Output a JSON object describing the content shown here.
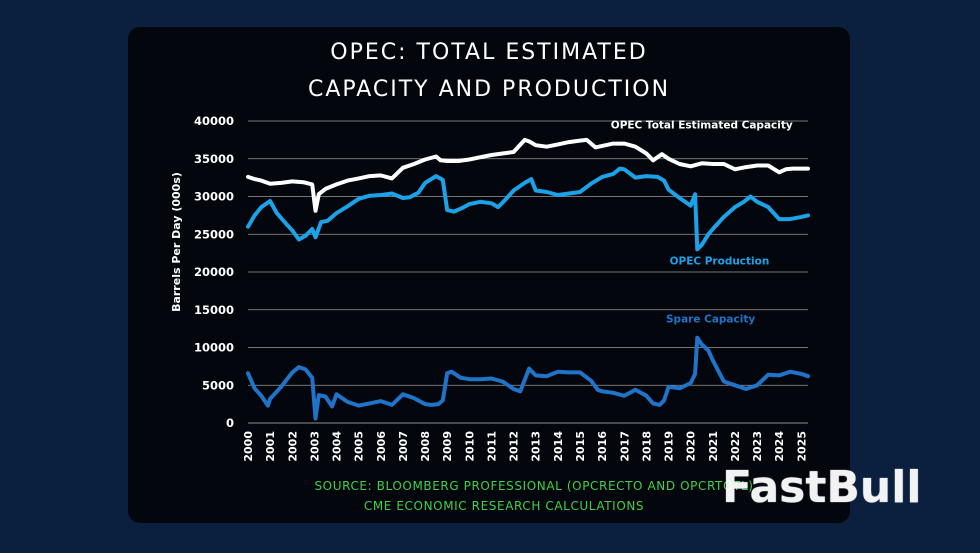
{
  "title_line1": "OPEC: TOTAL ESTIMATED",
  "title_line2": "CAPACITY AND PRODUCTION",
  "source_line1": "SOURCE: BLOOMBERG PROFESSIONAL (OPCRECTO AND OPCRTOTL)",
  "source_line2": "CME ECONOMIC RESEARCH CALCULATIONS",
  "watermark": "FastBull",
  "colors": {
    "capacity": "#ffffff",
    "production": "#1aa3e8",
    "spare": "#1f74c9",
    "panel_bg": "#03060c",
    "page_bg": "#0b1f3f",
    "source_text": "#3fd14a"
  },
  "chart_data": {
    "type": "line",
    "ylabel": "Barrels Per Day (000s)",
    "xlabel": "",
    "ylim": [
      0,
      40000
    ],
    "xlim": [
      2000,
      2025.3
    ],
    "yticks": [
      0,
      5000,
      10000,
      15000,
      20000,
      25000,
      30000,
      35000,
      40000
    ],
    "ytick_labels": [
      "0",
      "5000",
      "10000",
      "15000",
      "20000",
      "25000",
      "30000",
      "35000",
      "40000"
    ],
    "xticks": [
      2000,
      2001,
      2002,
      2003,
      2004,
      2005,
      2006,
      2007,
      2008,
      2009,
      2010,
      2011,
      2012,
      2013,
      2014,
      2015,
      2016,
      2017,
      2018,
      2019,
      2020,
      2021,
      2022,
      2023,
      2024,
      2025
    ],
    "xtick_labels": [
      "2000",
      "2001",
      "2002",
      "2003",
      "2004",
      "2005",
      "2006",
      "2007",
      "2008",
      "2009",
      "2010",
      "2011",
      "2012",
      "2013",
      "2014",
      "2015",
      "2016",
      "2017",
      "2018",
      "2019",
      "2020",
      "2021",
      "2022",
      "2023",
      "2024",
      "2025"
    ],
    "grid": true,
    "series": [
      {
        "name": "OPEC Total Estimated Capacity",
        "x": [
          2000,
          2000.3,
          2000.6,
          2001,
          2001.5,
          2002,
          2002.5,
          2002.9,
          2003.05,
          2003.2,
          2003.5,
          2004,
          2004.5,
          2005,
          2005.5,
          2006,
          2006.5,
          2007,
          2007.5,
          2008,
          2008.5,
          2008.7,
          2009,
          2009.5,
          2010,
          2010.5,
          2011,
          2011.5,
          2012,
          2012.5,
          2012.7,
          2013,
          2013.5,
          2014,
          2014.5,
          2015,
          2015.3,
          2015.7,
          2016,
          2016.5,
          2017,
          2017.5,
          2018,
          2018.3,
          2018.7,
          2019,
          2019.5,
          2020,
          2020.5,
          2021,
          2021.5,
          2022,
          2022.5,
          2023,
          2023.5,
          2024,
          2024.3,
          2024.6,
          2025,
          2025.3
        ],
        "values": [
          32600,
          32300,
          32100,
          31700,
          31800,
          32000,
          31900,
          31600,
          28100,
          30300,
          31000,
          31600,
          32100,
          32400,
          32700,
          32800,
          32400,
          33800,
          34300,
          34900,
          35300,
          34800,
          34700,
          34700,
          34900,
          35200,
          35500,
          35700,
          35900,
          37500,
          37300,
          36800,
          36600,
          36900,
          37200,
          37400,
          37500,
          36500,
          36700,
          37000,
          37000,
          36600,
          35700,
          34800,
          35600,
          35000,
          34300,
          34000,
          34400,
          34300,
          34300,
          33600,
          33900,
          34100,
          34100,
          33200,
          33600,
          33700,
          33700,
          33700
        ]
      },
      {
        "name": "OPEC Production",
        "x": [
          2000,
          2000.3,
          2000.6,
          2001,
          2001.3,
          2001.6,
          2002,
          2002.3,
          2002.6,
          2002.9,
          2003.05,
          2003.3,
          2003.6,
          2004,
          2004.5,
          2005,
          2005.5,
          2006,
          2006.5,
          2007,
          2007.3,
          2007.7,
          2008,
          2008.5,
          2008.8,
          2009,
          2009.3,
          2009.7,
          2010,
          2010.5,
          2011,
          2011.3,
          2011.6,
          2012,
          2012.5,
          2012.8,
          2013,
          2013.5,
          2014,
          2014.5,
          2015,
          2015.5,
          2016,
          2016.5,
          2016.8,
          2017,
          2017.5,
          2018,
          2018.5,
          2018.8,
          2019,
          2019.5,
          2020,
          2020.2,
          2020.3,
          2020.5,
          2020.8,
          2021,
          2021.5,
          2022,
          2022.4,
          2022.7,
          2023,
          2023.5,
          2024,
          2024.5,
          2025,
          2025.3
        ],
        "values": [
          26000,
          27500,
          28600,
          29400,
          27800,
          26800,
          25500,
          24300,
          24800,
          25700,
          24600,
          26600,
          26800,
          27800,
          28700,
          29700,
          30100,
          30200,
          30400,
          29800,
          29900,
          30500,
          31800,
          32700,
          32200,
          28200,
          28000,
          28500,
          29000,
          29300,
          29100,
          28600,
          29500,
          30800,
          31800,
          32300,
          30800,
          30600,
          30200,
          30400,
          30600,
          31700,
          32600,
          33000,
          33700,
          33600,
          32500,
          32700,
          32600,
          32100,
          30900,
          29800,
          28800,
          30300,
          23000,
          23600,
          25000,
          25700,
          27300,
          28600,
          29300,
          30000,
          29300,
          28600,
          27000,
          27000,
          27300,
          27500
        ]
      },
      {
        "name": "Spare Capacity",
        "x": [
          2000,
          2000.3,
          2000.6,
          2000.9,
          2001,
          2001.5,
          2002,
          2002.3,
          2002.6,
          2002.9,
          2003.05,
          2003.2,
          2003.5,
          2003.8,
          2004,
          2004.5,
          2005,
          2005.5,
          2006,
          2006.5,
          2007,
          2007.5,
          2008,
          2008.3,
          2008.6,
          2008.8,
          2009,
          2009.2,
          2009.6,
          2010,
          2010.5,
          2011,
          2011.5,
          2012,
          2012.3,
          2012.7,
          2013,
          2013.5,
          2014,
          2014.5,
          2015,
          2015.5,
          2015.8,
          2016,
          2016.5,
          2017,
          2017.5,
          2018,
          2018.3,
          2018.6,
          2018.8,
          2019,
          2019.5,
          2020,
          2020.2,
          2020.3,
          2020.5,
          2020.8,
          2021,
          2021.5,
          2022,
          2022.5,
          2023,
          2023.5,
          2024,
          2024.5,
          2025,
          2025.3
        ],
        "values": [
          6600,
          4600,
          3600,
          2300,
          3200,
          4800,
          6700,
          7400,
          7100,
          6000,
          600,
          3700,
          3500,
          2200,
          3800,
          2800,
          2300,
          2600,
          2900,
          2400,
          3800,
          3300,
          2500,
          2400,
          2500,
          3000,
          6600,
          6800,
          6000,
          5800,
          5800,
          5900,
          5500,
          4500,
          4200,
          7200,
          6300,
          6200,
          6800,
          6700,
          6700,
          5600,
          4400,
          4200,
          4000,
          3600,
          4400,
          3600,
          2600,
          2400,
          3000,
          4800,
          4600,
          5300,
          6500,
          11300,
          10400,
          9600,
          8300,
          5500,
          5000,
          4500,
          5000,
          6400,
          6300,
          6800,
          6500,
          6200
        ]
      }
    ],
    "annotations": [
      {
        "text": "OPEC Total Estimated Capacity",
        "series": "OPEC Total Estimated Capacity",
        "x": 2020.5,
        "y": 39000
      },
      {
        "text": "OPEC Production",
        "series": "OPEC Production",
        "x": 2021.3,
        "y": 21000
      },
      {
        "text": "Spare Capacity",
        "series": "Spare Capacity",
        "x": 2020.9,
        "y": 13300
      }
    ]
  }
}
